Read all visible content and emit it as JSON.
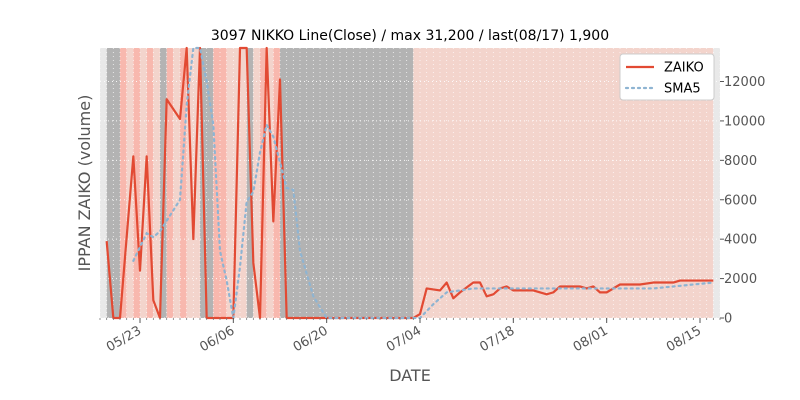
{
  "chart_data": {
    "type": "line",
    "title": "3097 NIKKO Line(Close) / max 31,200 / last(08/17) 1,900",
    "xlabel": "DATE",
    "ylabel": "IPPAN ZAIKO (volume)",
    "x_range": [
      "2023-05-17",
      "2023-08-18"
    ],
    "ylim": [
      0,
      13700
    ],
    "yticks": [
      0,
      2000,
      4000,
      6000,
      8000,
      10000,
      12000
    ],
    "xtick_dates": [
      "2023-05-23",
      "2023-06-06",
      "2023-06-20",
      "2023-07-04",
      "2023-07-18",
      "2023-08-01",
      "2023-08-15"
    ],
    "xtick_labels": [
      "05/23",
      "06/06",
      "06/20",
      "07/04",
      "07/18",
      "08/01",
      "08/15"
    ],
    "grid": true,
    "legend_position": "top-right",
    "colors": {
      "zaiko": "#e24a33",
      "sma": "#8eb4d2",
      "gray_band": "#b3b3b3",
      "red_band": "#f8b8ae",
      "pink_band": "#f3d4cc",
      "light_band": "#e9e9e9",
      "plot_bg": "#ffffff"
    },
    "series": [
      {
        "name": "ZAIKO",
        "style": "solid",
        "x": [
          "2023-05-18",
          "2023-05-19",
          "2023-05-20",
          "2023-05-22",
          "2023-05-23",
          "2023-05-24",
          "2023-05-25",
          "2023-05-26",
          "2023-05-27",
          "2023-05-29",
          "2023-05-30",
          "2023-05-31",
          "2023-06-01",
          "2023-06-02",
          "2023-06-03",
          "2023-06-04",
          "2023-06-05",
          "2023-06-06",
          "2023-06-07",
          "2023-06-08",
          "2023-06-09",
          "2023-06-10",
          "2023-06-11",
          "2023-06-12",
          "2023-06-13",
          "2023-06-14",
          "2023-06-15",
          "2023-06-16",
          "2023-06-18",
          "2023-06-20",
          "2023-06-25",
          "2023-06-30",
          "2023-07-03",
          "2023-07-04",
          "2023-07-05",
          "2023-07-07",
          "2023-07-08",
          "2023-07-09",
          "2023-07-10",
          "2023-07-12",
          "2023-07-13",
          "2023-07-14",
          "2023-07-15",
          "2023-07-16",
          "2023-07-17",
          "2023-07-18",
          "2023-07-21",
          "2023-07-23",
          "2023-07-24",
          "2023-07-25",
          "2023-07-28",
          "2023-07-29",
          "2023-07-30",
          "2023-07-31",
          "2023-08-01",
          "2023-08-03",
          "2023-08-06",
          "2023-08-08",
          "2023-08-11",
          "2023-08-12",
          "2023-08-17"
        ],
        "y": [
          3900,
          0,
          0,
          8200,
          2400,
          8200,
          900,
          0,
          11100,
          10100,
          13700,
          4000,
          13700,
          0,
          0,
          0,
          0,
          0,
          13700,
          13700,
          2800,
          0,
          13700,
          4900,
          12100,
          0,
          0,
          0,
          0,
          0,
          0,
          0,
          0,
          200,
          1500,
          1400,
          1800,
          1000,
          1300,
          1800,
          1800,
          1100,
          1200,
          1500,
          1600,
          1400,
          1400,
          1200,
          1300,
          1600,
          1600,
          1500,
          1600,
          1300,
          1300,
          1700,
          1700,
          1800,
          1800,
          1900,
          1900
        ]
      },
      {
        "name": "SMA5",
        "style": "dotted",
        "x": [
          "2023-05-22",
          "2023-05-24",
          "2023-05-25",
          "2023-05-26",
          "2023-05-29",
          "2023-05-30",
          "2023-05-31",
          "2023-06-01",
          "2023-06-02",
          "2023-06-03",
          "2023-06-04",
          "2023-06-05",
          "2023-06-06",
          "2023-06-07",
          "2023-06-08",
          "2023-06-09",
          "2023-06-10",
          "2023-06-11",
          "2023-06-12",
          "2023-06-14",
          "2023-06-15",
          "2023-06-16",
          "2023-06-18",
          "2023-06-20",
          "2023-06-30",
          "2023-07-03",
          "2023-07-04",
          "2023-07-06",
          "2023-07-08",
          "2023-07-12",
          "2023-07-18",
          "2023-07-25",
          "2023-08-01",
          "2023-08-08",
          "2023-08-17"
        ],
        "y": [
          2900,
          4300,
          4100,
          4400,
          6000,
          10800,
          13700,
          13700,
          12000,
          9800,
          3400,
          1900,
          0,
          2600,
          5900,
          6400,
          8400,
          9800,
          9200,
          6600,
          6500,
          3400,
          1100,
          0,
          0,
          0,
          0,
          700,
          1300,
          1500,
          1500,
          1500,
          1500,
          1500,
          1800
        ]
      }
    ]
  }
}
